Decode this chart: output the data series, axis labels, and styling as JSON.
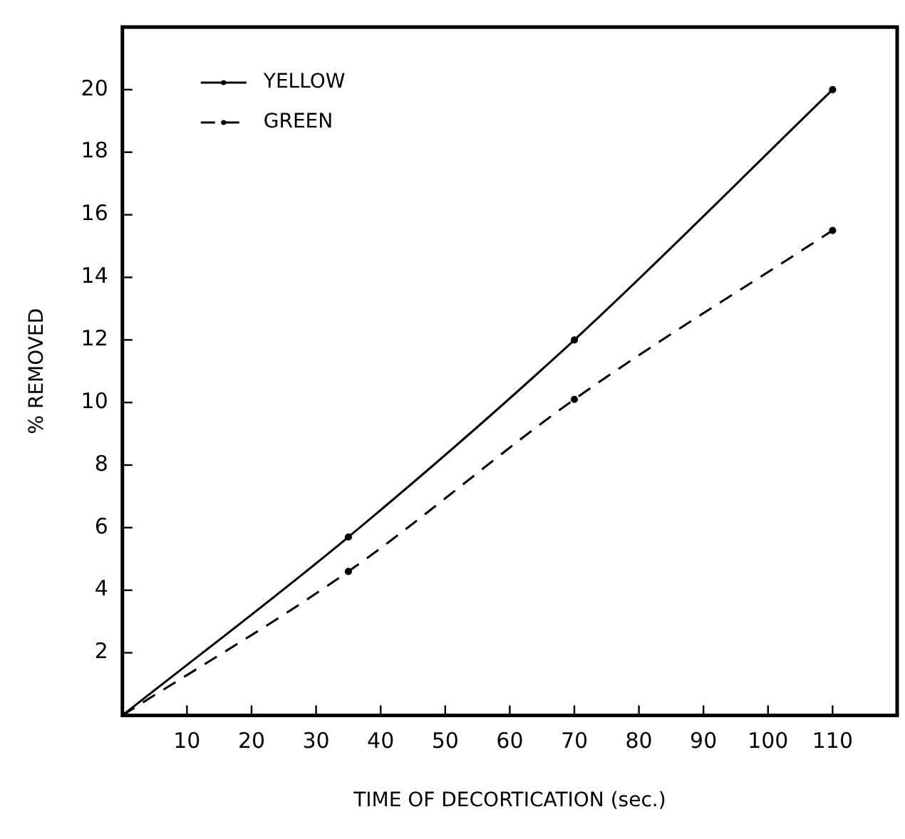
{
  "chart_data": {
    "type": "line",
    "xlabel": "TIME OF DECORTICATION (sec.)",
    "ylabel": "% REMOVED",
    "x": [
      0,
      35,
      70,
      110
    ],
    "series": [
      {
        "name": "YELLOW",
        "color": "#000000",
        "values": [
          0,
          5.7,
          12.0,
          20.0
        ],
        "line_style": "solid"
      },
      {
        "name": "GREEN",
        "color": "#000000",
        "values": [
          0,
          4.6,
          10.1,
          15.5
        ],
        "line_style": "dashed"
      }
    ],
    "xlim": [
      0,
      120
    ],
    "xticks": [
      10,
      20,
      30,
      40,
      50,
      60,
      70,
      80,
      90,
      100,
      110
    ],
    "ylim": [
      0,
      22
    ],
    "yticks": [
      2,
      4,
      6,
      8,
      10,
      12,
      14,
      16,
      18,
      20
    ],
    "grid": false,
    "legend": "top left",
    "marker": "circle"
  }
}
